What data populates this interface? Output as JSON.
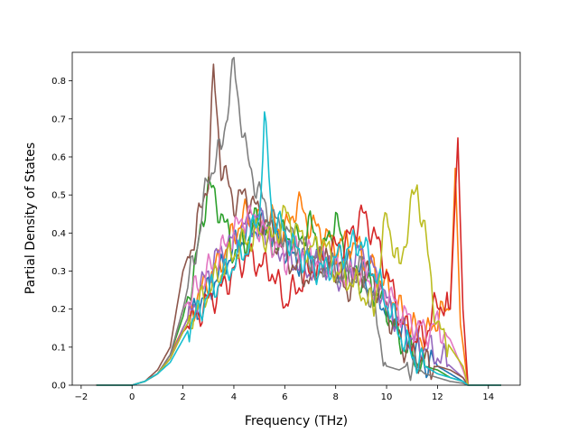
{
  "chart_data": {
    "type": "line",
    "title": "",
    "xlabel": "Frequency (THz)",
    "ylabel": "Partial Density of States",
    "xlim": [
      -2.35,
      15.25
    ],
    "ylim": [
      0.0,
      0.875
    ],
    "xticks": [
      -2,
      0,
      2,
      4,
      6,
      8,
      10,
      12,
      14
    ],
    "yticks": [
      0.0,
      0.1,
      0.2,
      0.3,
      0.4,
      0.5,
      0.6,
      0.7,
      0.8
    ],
    "xtick_labels": [
      "−2",
      "0",
      "2",
      "4",
      "6",
      "8",
      "10",
      "12",
      "14"
    ],
    "ytick_labels": [
      "0.0",
      "0.1",
      "0.2",
      "0.3",
      "0.4",
      "0.5",
      "0.6",
      "0.7",
      "0.8"
    ],
    "grid": false,
    "legend": "none",
    "x_range_data": [
      -1.4,
      14.5
    ],
    "series": [
      {
        "color": "#1f77b4",
        "x": [
          -1.4,
          0,
          0.5,
          1,
          1.5,
          2,
          2.5,
          3,
          3.5,
          4,
          4.5,
          5,
          5.5,
          6,
          6.5,
          7,
          7.5,
          8,
          8.5,
          9,
          9.5,
          10,
          10.5,
          11,
          11.5,
          12,
          12.5,
          13,
          13.2,
          14.5
        ],
        "y": [
          0,
          0.0,
          0.01,
          0.03,
          0.07,
          0.14,
          0.2,
          0.25,
          0.3,
          0.36,
          0.4,
          0.42,
          0.4,
          0.36,
          0.33,
          0.34,
          0.33,
          0.3,
          0.32,
          0.3,
          0.25,
          0.2,
          0.15,
          0.1,
          0.06,
          0.05,
          0.03,
          0.01,
          0.0,
          0
        ]
      },
      {
        "color": "#ff7f0e",
        "x": [
          -1.4,
          0,
          0.5,
          1,
          1.5,
          2,
          2.5,
          3,
          3.5,
          4,
          4.5,
          5,
          5.5,
          6,
          6.5,
          7,
          7.5,
          8,
          8.5,
          9,
          9.5,
          10,
          10.5,
          11,
          11.5,
          12,
          12.5,
          12.7,
          12.9,
          13.2,
          14.5
        ],
        "y": [
          0,
          0.0,
          0.01,
          0.03,
          0.08,
          0.15,
          0.22,
          0.28,
          0.33,
          0.4,
          0.45,
          0.42,
          0.43,
          0.4,
          0.48,
          0.42,
          0.4,
          0.36,
          0.38,
          0.35,
          0.3,
          0.26,
          0.2,
          0.15,
          0.12,
          0.18,
          0.2,
          0.57,
          0.16,
          0.0,
          0
        ]
      },
      {
        "color": "#2ca02c",
        "x": [
          -1.4,
          0,
          0.5,
          1,
          1.5,
          2,
          2.5,
          3,
          3.5,
          4,
          4.5,
          5,
          5.5,
          6,
          6.5,
          7,
          7.5,
          8,
          8.5,
          9,
          9.5,
          10,
          10.5,
          11,
          11.5,
          12,
          12.5,
          13,
          13.2,
          14.5
        ],
        "y": [
          0,
          0.0,
          0.01,
          0.03,
          0.08,
          0.18,
          0.32,
          0.53,
          0.45,
          0.35,
          0.38,
          0.45,
          0.36,
          0.4,
          0.38,
          0.42,
          0.35,
          0.44,
          0.3,
          0.28,
          0.25,
          0.2,
          0.12,
          0.08,
          0.05,
          0.04,
          0.02,
          0.01,
          0.0,
          0
        ]
      },
      {
        "color": "#d62728",
        "x": [
          -1.4,
          0,
          0.5,
          1,
          1.5,
          2,
          2.5,
          3,
          3.5,
          4,
          4.5,
          5,
          5.5,
          6,
          6.5,
          7,
          7.5,
          8,
          8.5,
          9,
          9.5,
          10,
          10.5,
          11,
          11.5,
          12,
          12.5,
          12.8,
          13,
          13.2,
          14.5
        ],
        "y": [
          0,
          0.0,
          0.01,
          0.03,
          0.07,
          0.14,
          0.18,
          0.22,
          0.25,
          0.3,
          0.34,
          0.32,
          0.3,
          0.22,
          0.26,
          0.3,
          0.33,
          0.36,
          0.38,
          0.45,
          0.4,
          0.3,
          0.18,
          0.12,
          0.13,
          0.22,
          0.2,
          0.65,
          0.2,
          0.0,
          0
        ]
      },
      {
        "color": "#9467bd",
        "x": [
          -1.4,
          0,
          0.5,
          1,
          1.5,
          2,
          2.5,
          3,
          3.5,
          4,
          4.5,
          5,
          5.5,
          6,
          6.5,
          7,
          7.5,
          8,
          8.5,
          9,
          9.5,
          10,
          10.5,
          11,
          11.5,
          12,
          12.5,
          13,
          13.2,
          14.5
        ],
        "y": [
          0,
          0.0,
          0.01,
          0.03,
          0.07,
          0.15,
          0.22,
          0.3,
          0.35,
          0.38,
          0.42,
          0.44,
          0.38,
          0.35,
          0.32,
          0.3,
          0.32,
          0.28,
          0.3,
          0.35,
          0.3,
          0.22,
          0.16,
          0.12,
          0.1,
          0.08,
          0.05,
          0.02,
          0.0,
          0
        ]
      },
      {
        "color": "#8c564b",
        "x": [
          -1.4,
          0,
          0.5,
          1,
          1.5,
          2,
          2.5,
          3,
          3.2,
          3.5,
          4,
          4.5,
          5,
          5.5,
          6,
          6.5,
          7,
          7.5,
          8,
          8.5,
          9,
          9.5,
          10,
          10.5,
          11,
          11.5,
          12,
          12.5,
          13,
          13.2,
          14.5
        ],
        "y": [
          0,
          0.0,
          0.01,
          0.04,
          0.1,
          0.3,
          0.4,
          0.55,
          0.82,
          0.58,
          0.48,
          0.5,
          0.45,
          0.4,
          0.35,
          0.3,
          0.28,
          0.32,
          0.3,
          0.25,
          0.3,
          0.28,
          0.2,
          0.12,
          0.08,
          0.06,
          0.05,
          0.04,
          0.02,
          0.0,
          0
        ]
      },
      {
        "color": "#e377c2",
        "x": [
          -1.4,
          0,
          0.5,
          1,
          1.5,
          2,
          2.5,
          3,
          3.5,
          4,
          4.5,
          5,
          5.5,
          6,
          6.5,
          7,
          7.5,
          8,
          8.5,
          9,
          9.5,
          10,
          10.5,
          11,
          11.5,
          12,
          12.5,
          13,
          13.2,
          14.5
        ],
        "y": [
          0,
          0.0,
          0.01,
          0.03,
          0.08,
          0.2,
          0.25,
          0.3,
          0.35,
          0.4,
          0.45,
          0.42,
          0.38,
          0.33,
          0.36,
          0.34,
          0.32,
          0.3,
          0.28,
          0.3,
          0.26,
          0.24,
          0.2,
          0.16,
          0.14,
          0.16,
          0.12,
          0.04,
          0.0,
          0
        ]
      },
      {
        "color": "#7f7f7f",
        "x": [
          -1.4,
          0,
          0.5,
          1,
          1.5,
          2,
          2.5,
          3,
          3.5,
          4,
          4.5,
          5,
          5.5,
          6,
          6.5,
          7,
          7.5,
          8,
          8.5,
          9,
          9.5,
          10,
          10.5,
          11,
          11.5,
          12,
          12.5,
          13,
          13.2,
          14.5
        ],
        "y": [
          0,
          0.0,
          0.01,
          0.03,
          0.08,
          0.2,
          0.35,
          0.55,
          0.62,
          0.84,
          0.6,
          0.5,
          0.44,
          0.4,
          0.38,
          0.34,
          0.32,
          0.3,
          0.28,
          0.3,
          0.2,
          0.05,
          0.04,
          0.06,
          0.03,
          0.02,
          0.01,
          0.005,
          0.0,
          0
        ]
      },
      {
        "color": "#bcbd22",
        "x": [
          -1.4,
          0,
          0.5,
          1,
          1.5,
          2,
          2.5,
          3,
          3.5,
          4,
          4.5,
          5,
          5.5,
          6,
          6.5,
          7,
          7.5,
          8,
          8.5,
          9,
          9.5,
          10,
          10.5,
          11,
          11.2,
          11.5,
          12,
          12.5,
          13,
          13.2,
          14.5
        ],
        "y": [
          0,
          0.0,
          0.01,
          0.03,
          0.07,
          0.14,
          0.2,
          0.25,
          0.3,
          0.35,
          0.38,
          0.4,
          0.38,
          0.45,
          0.4,
          0.35,
          0.38,
          0.3,
          0.28,
          0.25,
          0.2,
          0.45,
          0.3,
          0.48,
          0.52,
          0.4,
          0.15,
          0.1,
          0.05,
          0.0,
          0
        ]
      },
      {
        "color": "#17becf",
        "x": [
          -1.4,
          0,
          0.5,
          1,
          1.5,
          2,
          2.5,
          3,
          3.5,
          4,
          4.5,
          5,
          5.2,
          5.5,
          6,
          6.5,
          7,
          7.5,
          8,
          8.5,
          9,
          9.5,
          10,
          10.5,
          11,
          11.5,
          12,
          12.5,
          13,
          13.2,
          14.5
        ],
        "y": [
          0,
          0.0,
          0.01,
          0.03,
          0.06,
          0.12,
          0.18,
          0.24,
          0.28,
          0.32,
          0.36,
          0.45,
          0.7,
          0.45,
          0.4,
          0.35,
          0.32,
          0.3,
          0.33,
          0.36,
          0.38,
          0.3,
          0.22,
          0.14,
          0.08,
          0.05,
          0.03,
          0.02,
          0.01,
          0.0,
          0
        ]
      }
    ]
  }
}
